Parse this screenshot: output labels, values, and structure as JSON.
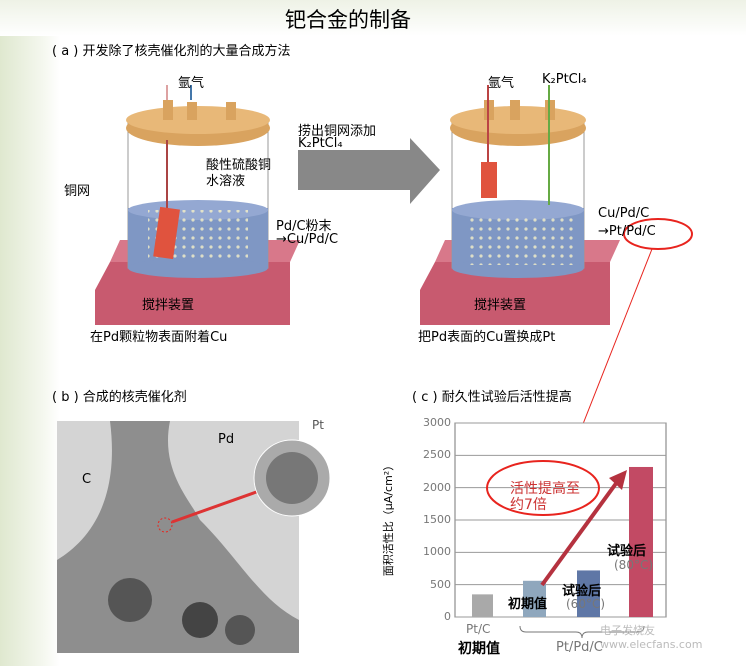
{
  "title": "钯合金的制备",
  "section_a": {
    "heading": "( a ) 开发除了核壳催化剂的大量合成方法",
    "left": {
      "gas": "氩气",
      "solution": "酸性硫酸铜\n水溶液",
      "mesh": "铜网",
      "powder1": "Pd/C粉末",
      "powder2": "→Cu/Pd/C",
      "stirrer": "搅拌装置",
      "caption": "在Pd颗粒物表面附着Cu"
    },
    "arrow": {
      "line1": "捞出铜网添加",
      "line2": "K₂PtCl₄"
    },
    "right": {
      "gas": "氩气",
      "reagent": "K₂PtCl₄",
      "product1": "Cu/Pd/C",
      "product2": "→Pt/Pd/C",
      "stirrer": "搅拌装置",
      "caption": "把Pd表面的Cu置换成Pt"
    }
  },
  "section_b": {
    "heading": "( b ) 合成的核壳催化剂",
    "label_c": "C",
    "label_pd": "Pd",
    "label_pt": "Pt"
  },
  "section_c": {
    "heading": "( c ) 耐久性试验后活性提高",
    "annotation": "活性提高至\n约7倍"
  },
  "chart_data": {
    "type": "bar",
    "ylabel": "面积活性比（μA/cm²）",
    "ylim": [
      0,
      3000
    ],
    "yticks": [
      "0",
      "500",
      "1000",
      "1500",
      "2000",
      "2500",
      "3000"
    ],
    "grid": true,
    "bars": [
      {
        "label": "初期值",
        "group": "Pt/C",
        "value": 350,
        "color": "#a9a9a9"
      },
      {
        "label": "初期值",
        "group": "Pt/Pd/C",
        "value": 560,
        "color": "#8fa7bd"
      },
      {
        "label": "试验后",
        "sublabel": "(60°C)",
        "group": "Pt/Pd/C",
        "value": 720,
        "color": "#5f77a6"
      },
      {
        "label": "试验后",
        "sublabel": "(80°C)",
        "group": "Pt/Pd/C",
        "value": 2320,
        "color": "#c24a64"
      }
    ],
    "group_labels": [
      "Pt/C",
      "初期值",
      "Pt/Pd/C"
    ]
  },
  "watermark": "电子发烧友 www.elecfans.com",
  "colors": {
    "highlight": "#e8241e",
    "lid": "#d9a35f",
    "liquid": "#7f97c4",
    "stirrer": "#c85a6f"
  }
}
